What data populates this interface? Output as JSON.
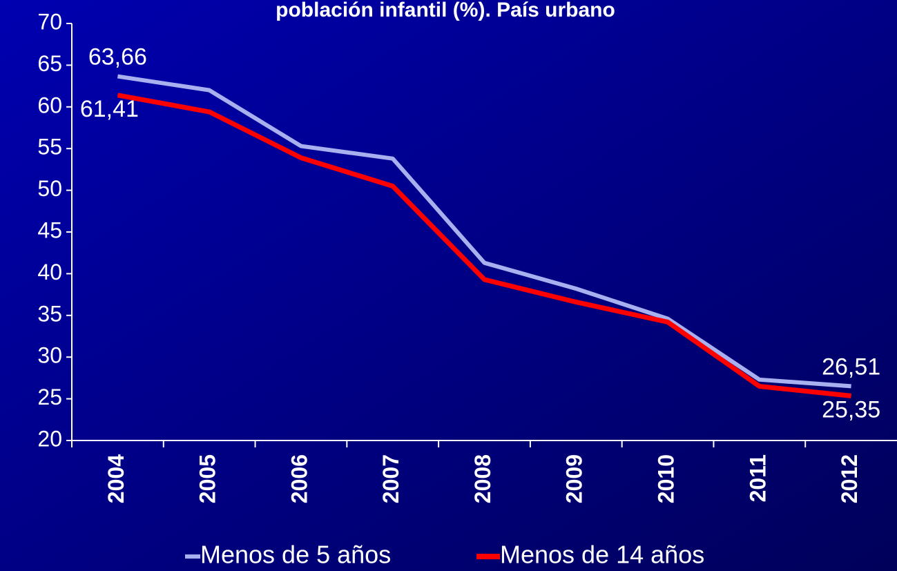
{
  "chart_data": {
    "type": "line",
    "title": "población infantil (%). País urbano",
    "categories": [
      "2004",
      "2005",
      "2006",
      "2007",
      "2008",
      "2009",
      "2010",
      "2011",
      "2012"
    ],
    "series": [
      {
        "name": "Menos de 5 años",
        "color": "#a8b0f0",
        "values": [
          63.66,
          62.0,
          55.3,
          53.8,
          41.3,
          38.2,
          34.6,
          27.3,
          26.51
        ],
        "value_labels": [
          "63,66",
          null,
          null,
          null,
          null,
          null,
          null,
          null,
          "26,51"
        ]
      },
      {
        "name": "Menos de 14 años",
        "color": "#ff0000",
        "values": [
          61.41,
          59.4,
          53.9,
          50.5,
          39.3,
          36.6,
          34.2,
          26.5,
          25.35
        ],
        "value_labels": [
          "61,41",
          null,
          null,
          null,
          null,
          null,
          null,
          null,
          "25,35"
        ]
      }
    ],
    "ylim": [
      20,
      70
    ],
    "yticks": [
      20,
      25,
      30,
      35,
      40,
      45,
      50,
      55,
      60,
      65,
      70
    ],
    "legend": "bottom"
  }
}
